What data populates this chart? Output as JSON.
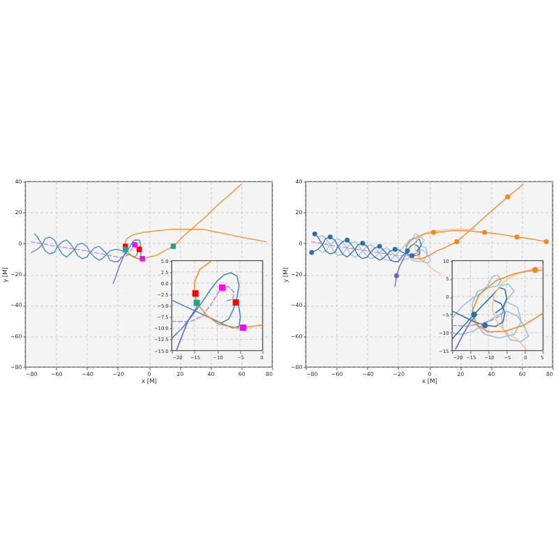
{
  "chart_data": [
    {
      "type": "line",
      "xlabel": "x [M]",
      "ylabel": "y [M]",
      "xlim": [
        -80,
        80
      ],
      "ylim": [
        -80,
        40
      ],
      "xticks": [
        -80,
        -60,
        -40,
        -20,
        0,
        20,
        40,
        60,
        80
      ],
      "yticks": [
        -80,
        -60,
        -40,
        -20,
        0,
        20,
        40
      ],
      "grid": true,
      "series": [
        {
          "color": "#3b88c4",
          "x": [
            -74,
            -72,
            -69,
            -67,
            -64,
            -61,
            -59,
            -56,
            -53,
            -51,
            -48,
            -46,
            -43,
            -40,
            -38,
            -35,
            -32,
            -30,
            -27,
            -25,
            -22,
            -20,
            -18,
            -15,
            -13,
            -12,
            -10,
            -9,
            -7,
            -6,
            -5,
            -6,
            -7,
            -8,
            -9
          ],
          "values": [
            6,
            4,
            -1,
            -5,
            -7,
            -6,
            -2,
            1,
            2,
            0,
            -4,
            -8,
            -10,
            -9,
            -6,
            -3,
            -2,
            -4,
            -7,
            -11,
            -12,
            -12,
            -10,
            -7,
            -4,
            -2,
            1,
            2,
            2,
            2,
            -1,
            -3,
            -6,
            -8,
            -9
          ]
        },
        {
          "color": "#3b88c4",
          "x": [
            -76,
            -74,
            -72,
            -69,
            -67,
            -64,
            -61,
            -59,
            -56,
            -53,
            -51,
            -48,
            -46,
            -43,
            -40,
            -38,
            -35,
            -32,
            -30,
            -27,
            -25,
            -22,
            -20,
            -17,
            -14,
            -11,
            -9,
            -7,
            -5,
            -5,
            -5
          ],
          "values": [
            -6,
            -5,
            -4,
            -1,
            3,
            4,
            2,
            -2,
            -7,
            -9,
            -7,
            -4,
            -1,
            0,
            -2,
            -6,
            -9,
            -11,
            -10,
            -7,
            -5,
            -4,
            -4,
            -5,
            -7,
            -8,
            -9,
            -10,
            -10,
            -8,
            -5
          ]
        },
        {
          "color": "#b28ae0",
          "line_style": "dashed",
          "x": [
            -76,
            -60,
            -40,
            -20,
            -16,
            -14,
            -12,
            -10,
            -9,
            -8,
            -6,
            -7,
            -8
          ],
          "values": [
            1,
            -2,
            -5,
            -9,
            -9,
            -8,
            -5,
            -3,
            -1,
            -1,
            -2,
            -4,
            -4
          ]
        },
        {
          "color": "#6f5fd6",
          "x": [
            -14,
            -16,
            -19,
            -21,
            -23
          ],
          "values": [
            -5,
            -8,
            -15,
            -21,
            -26
          ]
        },
        {
          "color": "#ff8c1a",
          "x": [
            76,
            65,
            55,
            45,
            35,
            25,
            15,
            5,
            -3,
            -8,
            -11,
            -14,
            -15,
            -15,
            -14,
            -12,
            -10,
            -6,
            -4,
            0,
            5,
            10,
            16,
            22,
            30,
            38,
            45,
            52,
            60
          ],
          "values": [
            1,
            3,
            5,
            7,
            9,
            9,
            9,
            8,
            7,
            6,
            5,
            3,
            1,
            -2,
            -5,
            -7,
            -9,
            -10,
            -10,
            -9,
            -8,
            -5,
            -2,
            4,
            11,
            18,
            25,
            31,
            38
          ]
        },
        {
          "type": "scatter",
          "marker": "square",
          "color": "#ff0000",
          "x": [
            -15,
            -6
          ],
          "values": [
            -2,
            -4
          ]
        },
        {
          "type": "scatter",
          "marker": "square",
          "color": "#ff00ff",
          "x": [
            -9,
            -4
          ],
          "values": [
            -1,
            -10
          ]
        },
        {
          "type": "scatter",
          "marker": "square",
          "color": "#28a08c",
          "x": [
            -15,
            16
          ],
          "values": [
            -4,
            -2
          ]
        }
      ]
    },
    {
      "type": "line",
      "xlim": [
        -20,
        0
      ],
      "ylim": [
        -15,
        5
      ],
      "xticks": [
        -20,
        -15,
        -10,
        -5,
        0
      ],
      "yticks": [
        {
          "value": -15,
          "label": "−15.0"
        },
        -12.5,
        {
          "value": -10,
          "label": "−10.0"
        },
        -7.5,
        {
          "value": -5,
          "label": "−5.0"
        },
        -2.5,
        {
          "value": 0,
          "label": "0.0"
        },
        2.5,
        {
          "value": 5,
          "label": "5.0"
        }
      ],
      "grid": true,
      "series": [
        {
          "color": "#3b88c4",
          "x": [
            -20,
            -17.5,
            -15,
            -13,
            -11.5,
            -10,
            -8.5,
            -7,
            -5.6,
            -5.2,
            -5.6,
            -6.5,
            -7.5,
            -9
          ],
          "values": [
            -12.3,
            -9.8,
            -6.5,
            -3.8,
            -1.5,
            0.5,
            1.8,
            2.3,
            1.5,
            -0.5,
            -3.0,
            -6.0,
            -8.0,
            -8.8
          ]
        },
        {
          "color": "#3b88c4",
          "x": [
            -20,
            -17,
            -14,
            -11,
            -8.5,
            -6.5,
            -5.2,
            -4.9,
            -5.3
          ],
          "values": [
            -3.8,
            -5.2,
            -6.6,
            -8.0,
            -9.2,
            -10.0,
            -9.6,
            -7.5,
            -5.0
          ]
        },
        {
          "color": "#b28ae0",
          "line_style": "dashed",
          "x": [
            -20,
            -16,
            -13.5,
            -11.5,
            -10,
            -9,
            -7.5,
            -6.3,
            -6.5,
            -8
          ],
          "values": [
            -8.5,
            -8.6,
            -7.5,
            -5.0,
            -2.5,
            -1.0,
            -0.8,
            -2.0,
            -3.5,
            -4.0
          ]
        },
        {
          "color": "#6f5fd6",
          "x": [
            -14.4,
            -16.4,
            -19
          ],
          "values": [
            -5.2,
            -8.3,
            -15
          ]
        },
        {
          "color": "#ff8c1a",
          "x": [
            -11.3,
            -13.8,
            -14.9,
            -15.1,
            -14.4,
            -12.3,
            -9.7,
            -5.6,
            -4.3,
            0
          ],
          "values": [
            4.9,
            3.1,
            0.5,
            -2.0,
            -4.6,
            -7.2,
            -9.1,
            -10.0,
            -9.9,
            -9.3
          ]
        },
        {
          "type": "scatter",
          "marker": "square",
          "color": "#ff0000",
          "x": [
            -14.8,
            -5.9
          ],
          "values": [
            -2.3,
            -4.3
          ]
        },
        {
          "type": "scatter",
          "marker": "square",
          "color": "#ff00ff",
          "x": [
            -8.9,
            -4.3
          ],
          "values": [
            -1.0,
            -9.9
          ]
        },
        {
          "type": "scatter",
          "marker": "square",
          "color": "#28a08c",
          "x": [
            -14.5
          ],
          "values": [
            -4.4
          ]
        }
      ]
    },
    {
      "type": "line",
      "xlabel": "x [M]",
      "ylabel": "y [M]",
      "xlim": [
        -80,
        80
      ],
      "ylim": [
        -80,
        40
      ],
      "xticks": [
        -80,
        -60,
        -40,
        -20,
        0,
        20,
        40,
        60,
        80
      ],
      "yticks": [
        -80,
        -60,
        -40,
        -20,
        0,
        20,
        40
      ],
      "grid": true,
      "series": [
        {
          "color": "#94c0e6",
          "x": [
            -72,
            -69,
            -67,
            -64,
            -61,
            -59,
            -56,
            -53,
            -51,
            -48,
            -46,
            -43,
            -40,
            -38,
            -35,
            -32,
            -30,
            -27,
            -25,
            -22,
            -20,
            -17,
            -15,
            -12,
            -10,
            -9,
            -8,
            -7,
            -8,
            -10,
            -13,
            -15,
            -14,
            -11,
            -7,
            -3,
            -1,
            -2,
            -5
          ],
          "values": [
            4,
            5,
            3,
            -1,
            -6,
            -8,
            -7,
            -3,
            0,
            1,
            -1,
            -5,
            -8,
            -10,
            -9,
            -6,
            -4,
            -3,
            -5,
            -8,
            -6,
            -3,
            -1,
            1,
            4,
            6,
            6,
            5,
            3,
            3,
            2,
            -2,
            -7,
            -11,
            -12,
            -11,
            -7,
            -3,
            -2
          ]
        },
        {
          "color": "#94c0e6",
          "x": [
            -72,
            -69,
            -67,
            -64,
            -61,
            -59,
            -56,
            -53,
            -51,
            -48,
            -46,
            -43,
            -40,
            -38,
            -35,
            -32,
            -30,
            -27,
            -25,
            -22,
            -20,
            -17,
            -14,
            -11,
            -8,
            -5,
            -2,
            0,
            1,
            -1,
            -4,
            -6,
            -7,
            -5,
            -3,
            -5,
            -7
          ],
          "values": [
            -4,
            -6,
            -5,
            -1,
            2,
            3,
            1,
            -3,
            -7,
            -9,
            -8,
            -5,
            -2,
            -1,
            -3,
            -6,
            -10,
            -11,
            -11,
            -8,
            -10,
            -11,
            -10,
            -8,
            -6,
            -4,
            -6,
            -9,
            -11,
            -13,
            -12,
            -9,
            -5,
            -1,
            2,
            4,
            3
          ]
        },
        {
          "color": "#2a6fb0",
          "x": [
            -74,
            -72,
            -69,
            -67,
            -64,
            -61,
            -59,
            -56,
            -53,
            -51,
            -48,
            -46,
            -43,
            -40,
            -38,
            -35,
            -32,
            -30,
            -27,
            -25,
            -22,
            -20,
            -17,
            -14,
            -12,
            -9,
            -7,
            -6,
            -5,
            -6,
            -8
          ],
          "values": [
            6,
            4,
            -1,
            -5,
            -7,
            -6,
            -2,
            1,
            2,
            0,
            -4,
            -8,
            -10,
            -9,
            -6,
            -3,
            -2,
            -4,
            -7,
            -11,
            -12,
            -12,
            -8,
            -5,
            -2,
            0,
            3,
            2,
            -1,
            -3,
            -5
          ]
        },
        {
          "color": "#2a6fb0",
          "x": [
            -76,
            -74,
            -72,
            -69,
            -67,
            -64,
            -61,
            -59,
            -56,
            -53,
            -51,
            -48,
            -46,
            -43,
            -40,
            -38,
            -35,
            -32,
            -30,
            -27,
            -25,
            -22,
            -20,
            -17,
            -14,
            -11,
            -8,
            -6,
            -6,
            -7,
            -9
          ],
          "values": [
            -6,
            -5,
            -4,
            -1,
            3,
            4,
            2,
            -2,
            -7,
            -9,
            -7,
            -4,
            -1,
            0,
            -2,
            -6,
            -9,
            -11,
            -10,
            -7,
            -5,
            -4,
            -4,
            -6,
            -7,
            -8,
            -8,
            -7,
            -5,
            -2,
            -1
          ]
        },
        {
          "color": "#b28ae0",
          "line_style": "dashed",
          "x": [
            -76,
            -60,
            -40,
            -20,
            -16,
            -12,
            -9,
            -7,
            -6
          ],
          "values": [
            1,
            -2,
            -5,
            -8,
            -8,
            -8,
            -7,
            -6,
            -4
          ]
        },
        {
          "color": "#6f5fd6",
          "x": [
            -13,
            -15,
            -17,
            -19,
            -21,
            -22
          ],
          "values": [
            -5,
            -7,
            -11,
            -15,
            -21,
            -28
          ]
        },
        {
          "color": "#ffc088",
          "x": [
            30,
            15,
            5,
            3,
            -2,
            -6,
            -9,
            -9,
            -8,
            -5,
            -2,
            0,
            4,
            8
          ],
          "values": [
            9,
            9,
            8,
            8,
            7,
            4,
            1,
            -4,
            -8,
            -11,
            -12,
            -15,
            -18,
            -20
          ]
        },
        {
          "color": "#ff8414",
          "x": [
            76,
            65,
            57,
            45,
            36,
            25,
            15,
            5,
            3,
            -3,
            -8,
            -13,
            -15,
            -13,
            -10,
            -5,
            0,
            5,
            10,
            18,
            25,
            35,
            43,
            51,
            61
          ],
          "values": [
            1,
            3,
            4,
            6,
            7,
            8,
            8,
            7,
            7,
            6,
            4,
            1,
            -4,
            -8,
            -10,
            -10,
            -8,
            -5,
            -3,
            1,
            7,
            16,
            23,
            30,
            38
          ]
        },
        {
          "type": "scatter",
          "marker": "circle",
          "color": "#2a6fb0",
          "x": [
            -74,
            -76,
            -64,
            -53,
            -43,
            -32,
            -22,
            -14,
            -11
          ],
          "values": [
            6,
            -6,
            4,
            2,
            0,
            -2,
            -4,
            -5,
            -8
          ]
        },
        {
          "type": "scatter",
          "marker": "circle",
          "color": "#6f5fd6",
          "x": [
            -21
          ],
          "values": [
            -21
          ]
        },
        {
          "type": "scatter",
          "marker": "circle",
          "color": "#ff8414",
          "x": [
            76,
            57,
            36,
            3,
            18,
            51
          ],
          "values": [
            1,
            4,
            7,
            7,
            1,
            30
          ]
        }
      ]
    },
    {
      "type": "line",
      "xlim": [
        -20,
        5
      ],
      "ylim": [
        -15,
        10
      ],
      "xticks": [
        -20,
        -15,
        -10,
        -5,
        0,
        5
      ],
      "yticks": [
        -15,
        -10,
        -5,
        0,
        5,
        10
      ],
      "grid": true,
      "series": [
        {
          "color": "#94c0e6",
          "x": [
            -20,
            -17,
            -14.5,
            -12,
            -10,
            -9,
            -7.5,
            -6.5,
            -7.5,
            -10,
            -13,
            -14.5,
            -14,
            -11,
            -7,
            -3,
            -1,
            -2,
            -5
          ],
          "values": [
            -6.0,
            -2.5,
            -0.5,
            1.0,
            3.5,
            5.5,
            6.0,
            4.5,
            3.0,
            2.5,
            1.5,
            -2.0,
            -7.0,
            -10.5,
            -11.5,
            -10.5,
            -7.0,
            -3.0,
            -1.5
          ]
        },
        {
          "color": "#94c0e6",
          "x": [
            -20,
            -17,
            -14,
            -11,
            -8,
            -5,
            -2,
            0,
            1,
            -1,
            -4,
            -6,
            -6.5,
            -5,
            -3,
            -4.5,
            -7
          ],
          "values": [
            -10.2,
            -10.5,
            -9.5,
            -7.5,
            -5.5,
            -4.0,
            -5.5,
            -8.5,
            -11.0,
            -12.5,
            -12.0,
            -9.0,
            -5.0,
            -1.0,
            1.5,
            3.5,
            3.0
          ]
        },
        {
          "color": "#2a6fb0",
          "x": [
            -20,
            -17,
            -14,
            -11.5,
            -9,
            -7,
            -5.5,
            -5,
            -6,
            -8
          ],
          "values": [
            -11.8,
            -8.3,
            -5.0,
            -2.3,
            0.3,
            2.5,
            2.0,
            -0.5,
            -3.0,
            -4.5
          ]
        },
        {
          "color": "#2a6fb0",
          "x": [
            -20,
            -17,
            -14,
            -11,
            -8,
            -6,
            -5.5,
            -6.5,
            -8.5
          ],
          "values": [
            -4.0,
            -5.5,
            -7.0,
            -8.0,
            -8.3,
            -7.0,
            -4.5,
            -2.0,
            -1.0
          ]
        },
        {
          "color": "#b28ae0",
          "line_style": "dashed",
          "x": [
            -20,
            -16,
            -12,
            -9,
            -7,
            -5.5
          ],
          "values": [
            -8.0,
            -8.3,
            -7.5,
            -6.5,
            -5.5,
            -4.0
          ]
        },
        {
          "color": "#6f5fd6",
          "x": [
            -13.2,
            -15,
            -17,
            -19.1
          ],
          "values": [
            -5.0,
            -7.0,
            -10.5,
            -14.7
          ]
        },
        {
          "color": "#ffc088",
          "x": [
            5,
            2.8,
            -2,
            -6,
            -8.5,
            -9,
            -7.5,
            -4.5,
            -2.2,
            0.4
          ],
          "values": [
            8.3,
            7.9,
            6.5,
            4.0,
            0.5,
            -3.5,
            -7.5,
            -10.5,
            -11.8,
            -14.7
          ]
        },
        {
          "color": "#ff8414",
          "x": [
            5,
            2.8,
            -2.8,
            -8,
            -12.6,
            -14.5,
            -13.2,
            -10,
            -5.4,
            -0.2,
            5
          ],
          "values": [
            7.3,
            7.4,
            6.4,
            4.4,
            0.5,
            -4.0,
            -7.9,
            -9.8,
            -9.6,
            -7.9,
            -4.6
          ]
        },
        {
          "type": "scatter",
          "marker": "circle",
          "color": "#2a6fb0",
          "x": [
            -14,
            -11
          ],
          "values": [
            -5.0,
            -8.0
          ]
        },
        {
          "type": "scatter",
          "marker": "circle",
          "color": "#ff8414",
          "x": [
            2.8
          ],
          "values": [
            7.4
          ]
        }
      ]
    }
  ]
}
